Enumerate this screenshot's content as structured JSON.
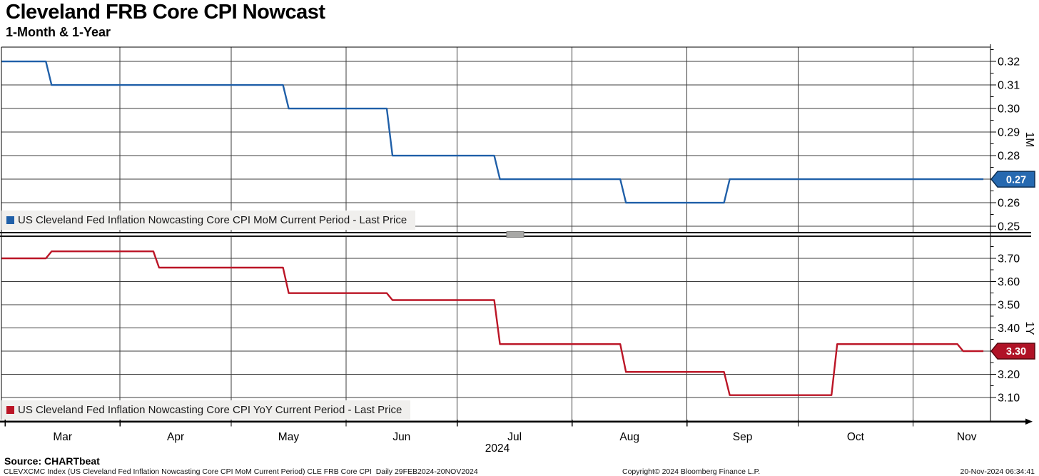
{
  "header": {
    "title": "Cleveland FRB Core CPI Nowcast",
    "subtitle": "1-Month & 1-Year"
  },
  "chart_data": {
    "type": "line",
    "subtype": "step",
    "grid": true,
    "x_axis": {
      "start": "2024-02-29",
      "end": "2024-11-30",
      "data_end": "2024-11-20",
      "month_ticks": [
        "2024-03-01",
        "2024-04-01",
        "2024-05-01",
        "2024-06-01",
        "2024-07-01",
        "2024-08-01",
        "2024-09-01",
        "2024-10-01",
        "2024-11-01"
      ],
      "month_labels": [
        "Mar",
        "Apr",
        "May",
        "Jun",
        "Jul",
        "Aug",
        "Sep",
        "Oct",
        "Nov"
      ],
      "year_label": "2024"
    },
    "panels": [
      {
        "axis_label": "1M",
        "ylim": [
          0.2476,
          0.3261
        ],
        "yticks": [
          0.25,
          0.26,
          0.27,
          0.28,
          0.29,
          0.3,
          0.31,
          0.32
        ],
        "series": {
          "name": "US Cleveland Fed Inflation Nowcasting Core CPI MoM Current Period - Last Price",
          "color": "#1f5fa8",
          "badge_fill": "#2669b0",
          "badge_border": "#0e2f52",
          "last_price": "0.27",
          "points": [
            {
              "date": "2024-02-29",
              "value": 0.32
            },
            {
              "date": "2024-03-12",
              "value": 0.31
            },
            {
              "date": "2024-05-15",
              "value": 0.3
            },
            {
              "date": "2024-06-12",
              "value": 0.28
            },
            {
              "date": "2024-07-11",
              "value": 0.27
            },
            {
              "date": "2024-08-14",
              "value": 0.26
            },
            {
              "date": "2024-09-11",
              "value": 0.27
            }
          ]
        }
      },
      {
        "axis_label": "1Y",
        "ylim": [
          3.0046,
          3.7923
        ],
        "yticks": [
          3.1,
          3.2,
          3.3,
          3.4,
          3.5,
          3.6,
          3.7
        ],
        "series": {
          "name": "US Cleveland Fed Inflation Nowcasting Core CPI YoY Current Period - Last Price",
          "color": "#bb1526",
          "badge_fill": "#b01226",
          "badge_border": "#55060f",
          "last_price": "3.30",
          "points": [
            {
              "date": "2024-02-29",
              "value": 3.7
            },
            {
              "date": "2024-03-12",
              "value": 3.73
            },
            {
              "date": "2024-04-10",
              "value": 3.66
            },
            {
              "date": "2024-05-15",
              "value": 3.55
            },
            {
              "date": "2024-06-12",
              "value": 3.52
            },
            {
              "date": "2024-07-11",
              "value": 3.33
            },
            {
              "date": "2024-08-14",
              "value": 3.21
            },
            {
              "date": "2024-09-11",
              "value": 3.11
            },
            {
              "date": "2024-10-10",
              "value": 3.33
            },
            {
              "date": "2024-11-13",
              "value": 3.3
            }
          ]
        }
      }
    ]
  },
  "footer": {
    "source": "Source: CHARTbeat",
    "descriptor": "CLEVXCMC Index (US Cleveland Fed Inflation Nowcasting Core CPI MoM Current Period) CLE FRB Core CPI  Daily 29FEB2024-20NOV2024",
    "copyright": "Copyright© 2024 Bloomberg Finance L.P.",
    "timestamp": "20-Nov-2024 06:34:41"
  }
}
